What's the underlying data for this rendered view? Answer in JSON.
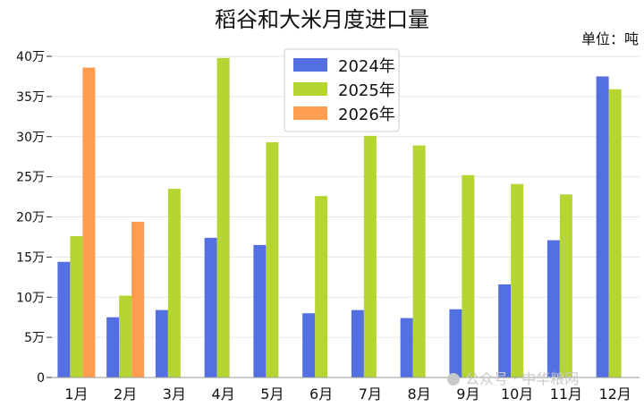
{
  "chart_data": {
    "type": "bar",
    "title": "稻谷和大米月度进口量",
    "unit_label": "单位：吨",
    "categories": [
      "1月",
      "2月",
      "3月",
      "4月",
      "5月",
      "6月",
      "7月",
      "8月",
      "9月",
      "10月",
      "11月",
      "12月"
    ],
    "series": [
      {
        "name": "2024年",
        "color": "#5470e0",
        "values": [
          144000,
          75000,
          84000,
          174000,
          165000,
          80000,
          84000,
          74000,
          85000,
          116000,
          171000,
          375000
        ]
      },
      {
        "name": "2025年",
        "color": "#b5d532",
        "values": [
          176000,
          102000,
          235000,
          398000,
          293000,
          226000,
          301000,
          289000,
          252000,
          241000,
          228000,
          359000
        ]
      },
      {
        "name": "2026年",
        "color": "#fe9c50",
        "values": [
          386000,
          194000,
          null,
          null,
          null,
          null,
          null,
          null,
          null,
          null,
          null,
          null
        ]
      }
    ],
    "yticks": [
      "0",
      "5万",
      "10万",
      "15万",
      "20万",
      "25万",
      "30万",
      "35万",
      "40万"
    ],
    "ylim": [
      0,
      400000
    ],
    "legend_position": "top-center",
    "grid": true
  },
  "watermark": "公众号 · 中华粮网"
}
